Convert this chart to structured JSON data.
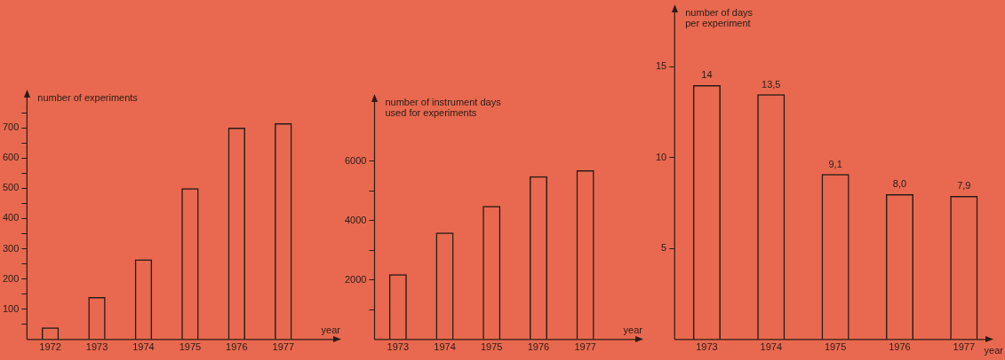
{
  "chart_data": [
    {
      "type": "bar",
      "ylabel": "number of experiments",
      "xlabel": "year",
      "categories": [
        "1972",
        "1973",
        "1974",
        "1975",
        "1976",
        "1977"
      ],
      "values": [
        40,
        140,
        265,
        500,
        700,
        715
      ],
      "color": "#2a1c18",
      "ylim": [
        0,
        800
      ],
      "yticks": [
        {
          "value": 50,
          "label": null
        },
        100,
        {
          "value": 150,
          "label": null
        },
        200,
        {
          "value": 250,
          "label": null
        },
        300,
        {
          "value": 350,
          "label": null
        },
        400,
        {
          "value": 450,
          "label": null
        },
        500,
        {
          "value": 550,
          "label": null
        },
        600,
        {
          "value": 650,
          "label": null
        },
        700,
        {
          "value": 750,
          "label": null
        }
      ],
      "grid": false
    },
    {
      "type": "bar",
      "ylabel": "number of instrument days\nused for experiments",
      "xlabel": "year",
      "categories": [
        "1973",
        "1974",
        "1975",
        "1976",
        "1977"
      ],
      "values": [
        2200,
        3600,
        4500,
        5500,
        5700
      ],
      "color": "#2a1c18",
      "ylim": [
        0,
        8000
      ],
      "yticks": [
        {
          "value": 1000,
          "label": null
        },
        2000,
        {
          "value": 3000,
          "label": null
        },
        4000,
        {
          "value": 5000,
          "label": null
        },
        6000
      ],
      "grid": false
    },
    {
      "type": "bar",
      "ylabel": "number of days\nper experiment",
      "xlabel": "year",
      "categories": [
        "1973",
        "1974",
        "1975",
        "1976",
        "1977"
      ],
      "values": [
        14,
        13.5,
        9.1,
        8.0,
        7.9
      ],
      "value_labels": [
        "14",
        "13,5",
        "9,1",
        "8,0",
        "7,9"
      ],
      "color": "#2a1c18",
      "ylim": [
        0,
        18
      ],
      "yticks": [
        5,
        10,
        15
      ],
      "grid": false
    }
  ]
}
